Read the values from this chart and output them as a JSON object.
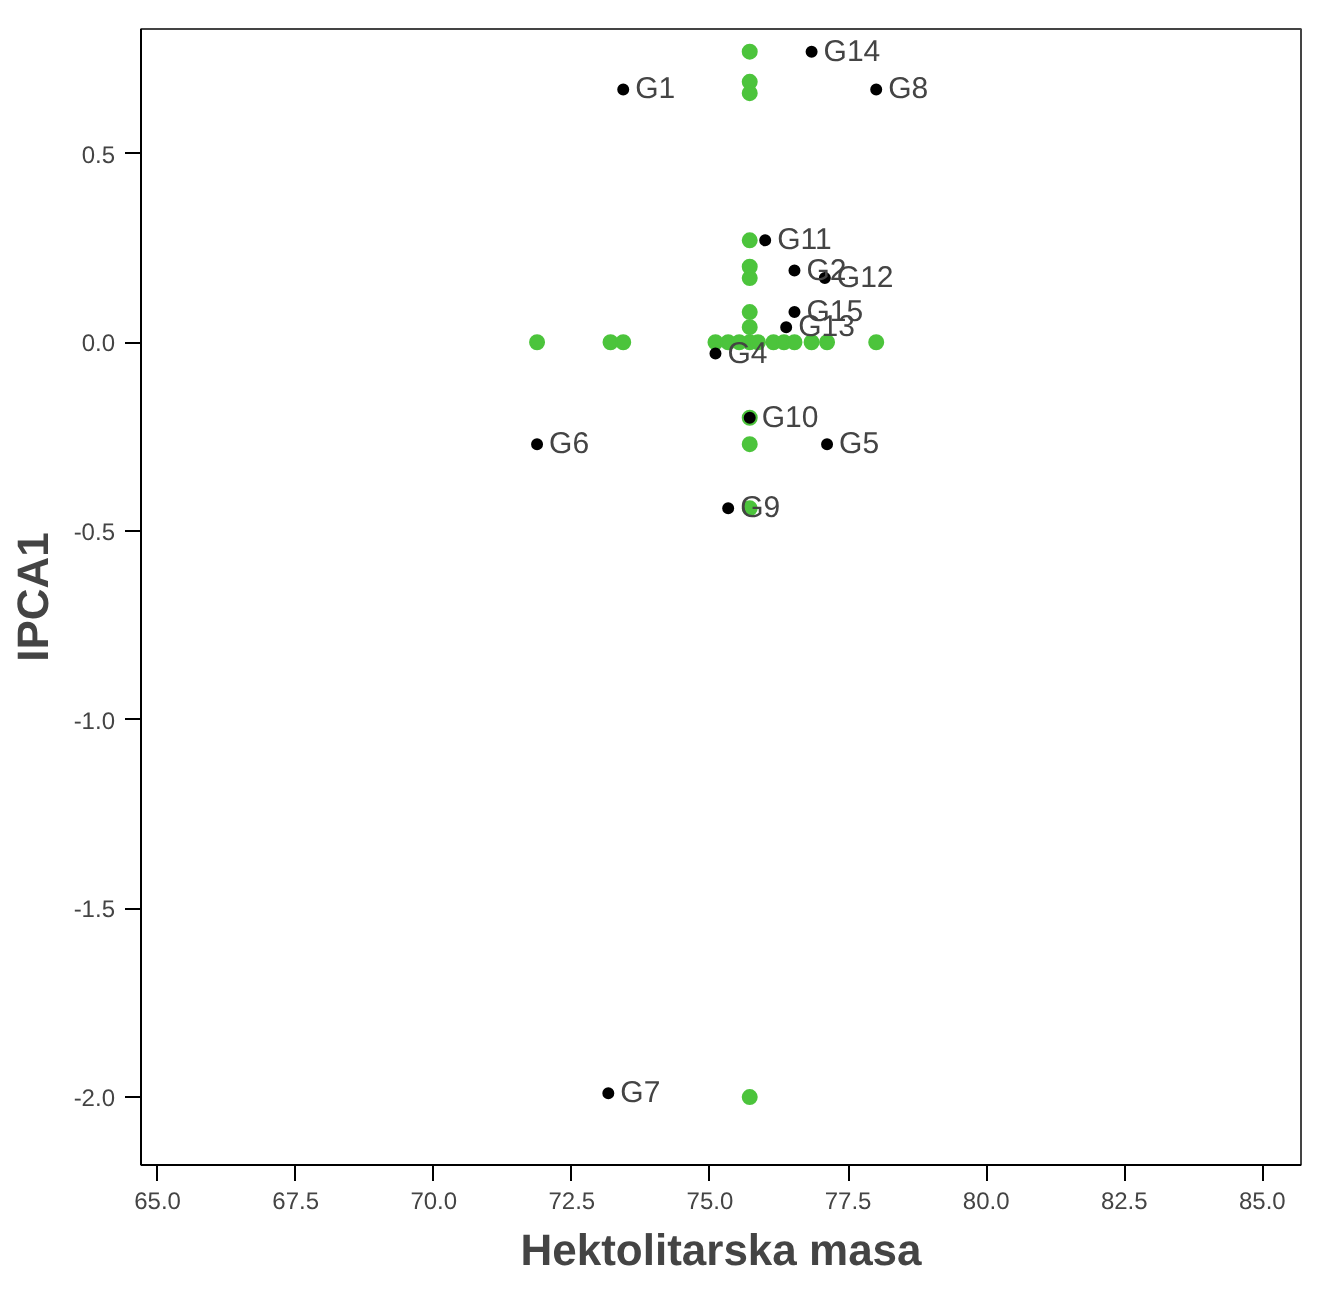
{
  "chart_data": {
    "type": "scatter",
    "xlabel": "Hektolitarska masa",
    "ylabel": "IPCA1",
    "xlim": [
      64.7,
      85.7
    ],
    "ylim": [
      -2.18,
      0.83
    ],
    "xticks": [
      {
        "value": 65,
        "label": "65.0"
      },
      {
        "value": 67.5,
        "label": "67.5"
      },
      {
        "value": 70,
        "label": "70.0"
      },
      {
        "value": 72.5,
        "label": "72.5"
      },
      {
        "value": 75,
        "label": "75.0"
      },
      {
        "value": 77.5,
        "label": "77.5"
      },
      {
        "value": 80,
        "label": "80.0"
      },
      {
        "value": 82.5,
        "label": "82.5"
      },
      {
        "value": 85,
        "label": "85.0"
      }
    ],
    "yticks": [
      {
        "value": -2,
        "label": "-2.0"
      },
      {
        "value": -1.5,
        "label": "-1.5"
      },
      {
        "value": -1,
        "label": "-1.0"
      },
      {
        "value": -0.5,
        "label": "-0.5"
      },
      {
        "value": 0,
        "label": "0.0"
      },
      {
        "value": 0.5,
        "label": "0.5"
      }
    ],
    "grid": false,
    "marker": "circle",
    "series": [
      {
        "color": "#4cc43c",
        "x": [
          71.87,
          73.2,
          73.43,
          75.1,
          75.33,
          75.53,
          75.72,
          75.87,
          76.15,
          76.34,
          76.53,
          76.84,
          77.12,
          78.01,
          75.72,
          75.72,
          75.72,
          75.72,
          75.72,
          75.72,
          75.72,
          75.72,
          75.72,
          75.72,
          75.72,
          75.72
        ],
        "values": [
          0,
          0,
          0,
          0,
          0,
          0,
          0,
          0,
          0,
          0,
          0,
          0,
          0,
          0,
          0.77,
          0.69,
          0.66,
          0.27,
          0.2,
          0.17,
          0.08,
          0.04,
          -0.2,
          -0.27,
          -0.44,
          -2.0
        ]
      },
      {
        "color": "#000000",
        "x": [
          73.43,
          76.84,
          78.01,
          76.0,
          76.53,
          77.08,
          76.53,
          76.38,
          75.1,
          75.72,
          77.12,
          71.87,
          75.33,
          73.16
        ],
        "values": [
          0.67,
          0.77,
          0.67,
          0.27,
          0.19,
          0.17,
          0.08,
          0.04,
          -0.03,
          -0.2,
          -0.27,
          -0.27,
          -0.44,
          -1.99
        ]
      }
    ],
    "annotations": [
      {
        "text": "G1",
        "x": 73.43,
        "y": 0.67
      },
      {
        "text": "G14",
        "x": 76.84,
        "y": 0.77
      },
      {
        "text": "G8",
        "x": 78.01,
        "y": 0.67
      },
      {
        "text": "G11",
        "x": 76.0,
        "y": 0.27
      },
      {
        "text": "G2",
        "x": 76.53,
        "y": 0.19
      },
      {
        "text": "G12",
        "x": 77.08,
        "y": 0.17
      },
      {
        "text": "G15",
        "x": 76.53,
        "y": 0.08
      },
      {
        "text": "G13",
        "x": 76.38,
        "y": 0.04
      },
      {
        "text": "G4",
        "x": 75.1,
        "y": -0.03
      },
      {
        "text": "G10",
        "x": 75.72,
        "y": -0.2
      },
      {
        "text": "G5",
        "x": 77.12,
        "y": -0.27
      },
      {
        "text": "G6",
        "x": 71.87,
        "y": -0.27
      },
      {
        "text": "G9",
        "x": 75.33,
        "y": -0.44
      },
      {
        "text": "G7",
        "x": 73.16,
        "y": -1.99
      }
    ]
  }
}
